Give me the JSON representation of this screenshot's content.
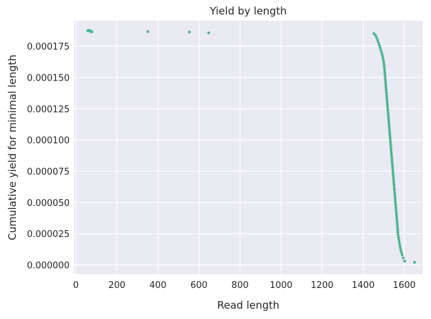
{
  "chart_data": {
    "type": "scatter",
    "title": "Yield by length",
    "xlabel": "Read length",
    "ylabel": "Cumulative yield for minimal length",
    "xlim": [
      -10,
      1690
    ],
    "ylim": [
      -7.5e-06,
      0.0001955
    ],
    "xticks": [
      0,
      200,
      400,
      600,
      800,
      1000,
      1200,
      1400,
      1600
    ],
    "xtick_labels": [
      "0",
      "200",
      "400",
      "600",
      "800",
      "1000",
      "1200",
      "1400",
      "1600"
    ],
    "yticks": [
      0,
      2.5e-05,
      5e-05,
      7.5e-05,
      0.0001,
      0.000125,
      0.00015,
      0.000175
    ],
    "ytick_labels": [
      "0.000000",
      "0.000025",
      "0.000050",
      "0.000075",
      "0.000100",
      "0.000125",
      "0.000150",
      "0.000175"
    ],
    "grid": true,
    "background": "#eaeaf2",
    "point_color": "#4cb391",
    "points": [
      [
        58,
        0.0001875
      ],
      [
        62,
        0.0001878
      ],
      [
        66,
        0.0001872
      ],
      [
        70,
        0.0001876
      ],
      [
        74,
        0.0001868
      ],
      [
        78,
        0.0001866
      ],
      [
        350,
        0.0001868
      ],
      [
        553,
        0.0001864
      ],
      [
        647,
        0.0001858
      ],
      [
        1452,
        0.0001852
      ],
      [
        1460,
        0.0001838
      ],
      [
        1465,
        0.000182
      ],
      [
        1470,
        0.00018
      ],
      [
        1474,
        0.000178
      ],
      [
        1478,
        0.000176
      ],
      [
        1482,
        0.000174
      ],
      [
        1486,
        0.000172
      ],
      [
        1490,
        0.00017
      ],
      [
        1493,
        0.000168
      ],
      [
        1496,
        0.000166
      ],
      [
        1498,
        0.000164
      ],
      [
        1500,
        0.000162
      ],
      [
        1502,
        0.00016
      ],
      [
        1503,
        0.000158
      ],
      [
        1504,
        0.000156
      ],
      [
        1505,
        0.000154
      ],
      [
        1506,
        0.000152
      ],
      [
        1507,
        0.00015
      ],
      [
        1508,
        0.000148
      ],
      [
        1509,
        0.000146
      ],
      [
        1510,
        0.000144
      ],
      [
        1511,
        0.000142
      ],
      [
        1512,
        0.00014
      ],
      [
        1513,
        0.000138
      ],
      [
        1514,
        0.000136
      ],
      [
        1515,
        0.000134
      ],
      [
        1516,
        0.000132
      ],
      [
        1517,
        0.00013
      ],
      [
        1518,
        0.000128
      ],
      [
        1519,
        0.000126
      ],
      [
        1520,
        0.000124
      ],
      [
        1521,
        0.000122
      ],
      [
        1522,
        0.00012
      ],
      [
        1523,
        0.000118
      ],
      [
        1524,
        0.000116
      ],
      [
        1525,
        0.000114
      ],
      [
        1526,
        0.000112
      ],
      [
        1527,
        0.00011
      ],
      [
        1528,
        0.000108
      ],
      [
        1529,
        0.000106
      ],
      [
        1530,
        0.000104
      ],
      [
        1531,
        0.000102
      ],
      [
        1532,
        0.0001
      ],
      [
        1533,
        9.8e-05
      ],
      [
        1534,
        9.6e-05
      ],
      [
        1535,
        9.4e-05
      ],
      [
        1536,
        9.2e-05
      ],
      [
        1537,
        9e-05
      ],
      [
        1538,
        8.8e-05
      ],
      [
        1539,
        8.6e-05
      ],
      [
        1540,
        8.4e-05
      ],
      [
        1541,
        8.2e-05
      ],
      [
        1542,
        8e-05
      ],
      [
        1543,
        7.8e-05
      ],
      [
        1544,
        7.6e-05
      ],
      [
        1545,
        7.4e-05
      ],
      [
        1546,
        7.2e-05
      ],
      [
        1547,
        7e-05
      ],
      [
        1548,
        6.8e-05
      ],
      [
        1549,
        6.6e-05
      ],
      [
        1550,
        6.4e-05
      ],
      [
        1551,
        6.2e-05
      ],
      [
        1552,
        6e-05
      ],
      [
        1553,
        5.8e-05
      ],
      [
        1554,
        5.6e-05
      ],
      [
        1555,
        5.4e-05
      ],
      [
        1556,
        5.2e-05
      ],
      [
        1557,
        5e-05
      ],
      [
        1558,
        4.8e-05
      ],
      [
        1559,
        4.6e-05
      ],
      [
        1560,
        4.4e-05
      ],
      [
        1561,
        4.2e-05
      ],
      [
        1562,
        4e-05
      ],
      [
        1563,
        3.8e-05
      ],
      [
        1564,
        3.6e-05
      ],
      [
        1565,
        3.4e-05
      ],
      [
        1566,
        3.2e-05
      ],
      [
        1567,
        3e-05
      ],
      [
        1568,
        2.8e-05
      ],
      [
        1569,
        2.6e-05
      ],
      [
        1570,
        2.4e-05
      ],
      [
        1572,
        2.2e-05
      ],
      [
        1574,
        2e-05
      ],
      [
        1576,
        1.8e-05
      ],
      [
        1578,
        1.6e-05
      ],
      [
        1580,
        1.4e-05
      ],
      [
        1583,
        1.2e-05
      ],
      [
        1586,
        1e-05
      ],
      [
        1590,
        8e-06
      ],
      [
        1595,
        5.5e-06
      ],
      [
        1602,
        3e-06
      ],
      [
        1650,
        2e-06
      ]
    ]
  }
}
